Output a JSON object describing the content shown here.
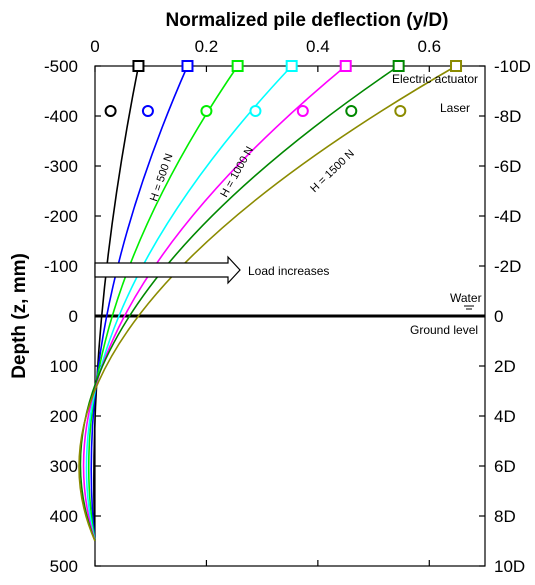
{
  "chart_data": {
    "type": "line",
    "title": "",
    "xlabel": "Normalized pile deflection (y/D)",
    "ylabel": "Depth (z, mm)",
    "xlim": [
      0,
      0.7
    ],
    "ylim": [
      500,
      -500
    ],
    "x_ticks": [
      "0",
      "0.2",
      "0.4",
      "0.6"
    ],
    "x_tick_values": [
      0,
      0.2,
      0.4,
      0.6
    ],
    "y_ticks": [
      "-500",
      "-400",
      "-300",
      "-200",
      "-100",
      "0",
      "100",
      "200",
      "300",
      "400",
      "500"
    ],
    "y_tick_values": [
      -500,
      -400,
      -300,
      -200,
      -100,
      0,
      100,
      200,
      300,
      400,
      500
    ],
    "right_ticks": [
      "-10D",
      "-8D",
      "-6D",
      "-4D",
      "-2D",
      "0",
      "2D",
      "4D",
      "6D",
      "8D",
      "10D"
    ],
    "pile_tip_depth": 450,
    "series": [
      {
        "color": "#000000",
        "x": [
          0.078,
          0.012,
          0.0
        ],
        "y": [
          -500,
          0,
          450
        ],
        "actuator": {
          "x": 0.078,
          "y": -500
        },
        "laser": {
          "x": 0.028,
          "y": -410
        }
      },
      {
        "color": "#0000ff",
        "x": [
          0.166,
          0.021,
          0.0
        ],
        "y": [
          -500,
          0,
          450
        ],
        "actuator": {
          "x": 0.166,
          "y": -500
        },
        "laser": {
          "x": 0.095,
          "y": -410
        }
      },
      {
        "color": "#00ee00",
        "x": [
          0.256,
          0.031,
          0.0
        ],
        "y": [
          -500,
          0,
          450
        ],
        "actuator": {
          "x": 0.256,
          "y": -500
        },
        "laser": {
          "x": 0.2,
          "y": -410
        }
      },
      {
        "color": "#00ffff",
        "x": [
          0.353,
          0.043,
          0.0
        ],
        "y": [
          -500,
          0,
          450
        ],
        "actuator": {
          "x": 0.353,
          "y": -500
        },
        "laser": {
          "x": 0.288,
          "y": -410
        }
      },
      {
        "color": "#ff00ff",
        "x": [
          0.45,
          0.053,
          0.0
        ],
        "y": [
          -500,
          0,
          450
        ],
        "actuator": {
          "x": 0.45,
          "y": -500
        },
        "laser": {
          "x": 0.373,
          "y": -410
        }
      },
      {
        "color": "#008800",
        "x": [
          0.545,
          0.062,
          0.0
        ],
        "y": [
          -500,
          0,
          450
        ],
        "actuator": {
          "x": 0.545,
          "y": -500
        },
        "laser": {
          "x": 0.46,
          "y": -410
        }
      },
      {
        "color": "#8b8b00",
        "x": [
          0.648,
          0.078,
          0.0
        ],
        "y": [
          -500,
          0,
          450
        ],
        "actuator": {
          "x": 0.648,
          "y": -500
        },
        "laser": {
          "x": 0.548,
          "y": -410
        }
      }
    ],
    "curve_labels": [
      {
        "text": "H = 500 N",
        "x": 0.125,
        "y": -275,
        "angle": -71
      },
      {
        "text": "H = 1000 N",
        "x": 0.26,
        "y": -285,
        "angle": -61
      },
      {
        "text": "H = 1500 N",
        "x": 0.43,
        "y": -285,
        "angle": -44
      }
    ],
    "annotations": {
      "electric_actuator": "Electric actuator",
      "laser": "Laser",
      "load_increases": "Load increases",
      "water": "Water",
      "ground_level": "Ground level"
    },
    "colors": {
      "ground_line": "#000000",
      "arrow_fill": "#ffffff"
    }
  }
}
